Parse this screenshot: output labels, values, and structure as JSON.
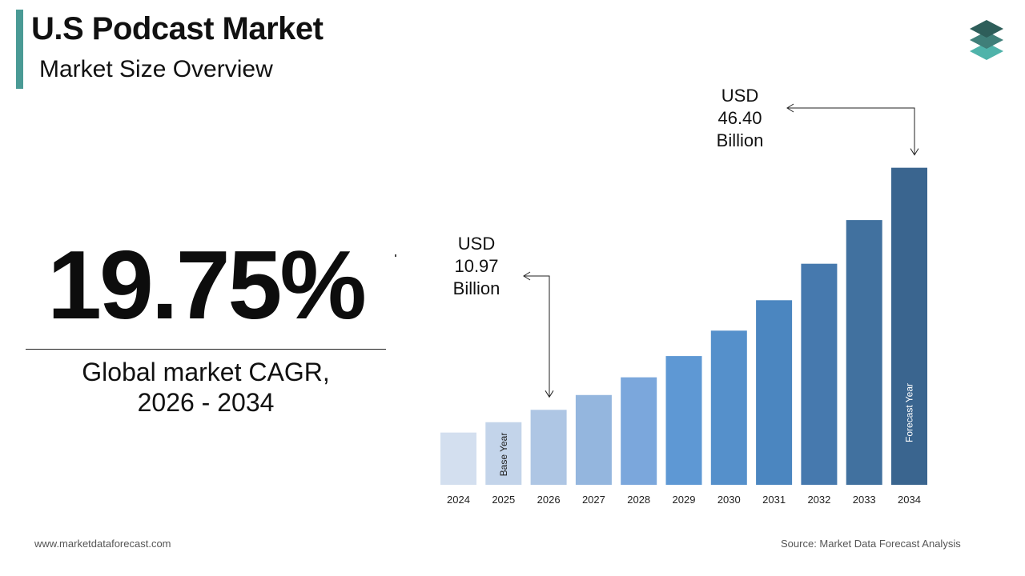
{
  "header": {
    "title": "U.S Podcast Market",
    "subtitle": "Market Size Overview"
  },
  "cagr": {
    "value": "19.75%",
    "caption_line1": "Global market CAGR,",
    "caption_line2": "2026 - 2034"
  },
  "chart_data": {
    "type": "bar",
    "categories": [
      "2024",
      "2025",
      "2026",
      "2027",
      "2028",
      "2029",
      "2030",
      "2031",
      "2032",
      "2033",
      "2034"
    ],
    "values": [
      7.65,
      9.16,
      10.97,
      13.14,
      15.73,
      18.84,
      22.56,
      27.01,
      32.35,
      38.74,
      46.4
    ],
    "ylim": [
      0,
      48
    ],
    "colors": [
      "#d3dfef",
      "#c3d4ea",
      "#aec6e4",
      "#94b6de",
      "#7ba7dc",
      "#5e98d4",
      "#5590cb",
      "#4b86c0",
      "#4679ae",
      "#41719f",
      "#3a658f"
    ],
    "bar_notes": [
      {
        "category": "2025",
        "text": "Base Year"
      },
      {
        "category": "2034",
        "text": "Forecast Year"
      }
    ],
    "callouts": [
      {
        "category": "2026",
        "lines": [
          "USD",
          "10.97",
          "Billion"
        ]
      },
      {
        "category": "2034",
        "lines": [
          "USD",
          "46.40",
          "Billion"
        ]
      }
    ]
  },
  "footer": {
    "website": "www.marketdataforecast.com",
    "source": "Source: Market Data Forecast Analysis"
  },
  "colors": {
    "accent": "#4a9a95",
    "logo_top": "#2e5e5a",
    "logo_mid": "#3f7f79",
    "logo_bottom": "#4fb3aa"
  }
}
